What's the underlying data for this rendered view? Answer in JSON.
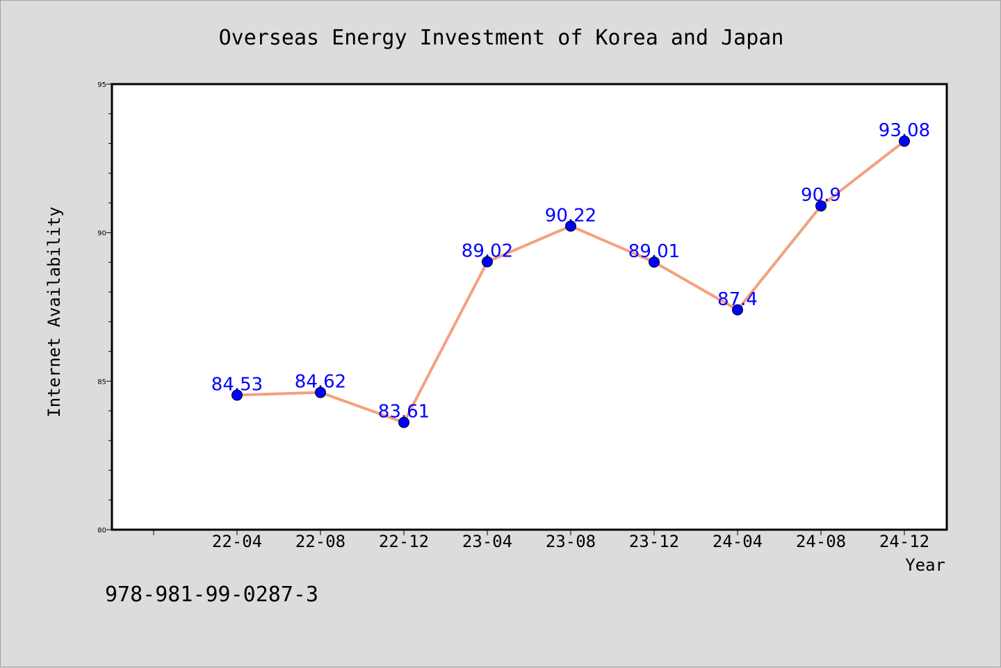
{
  "chart_data": {
    "type": "line",
    "title": "Overseas Energy Investment of Korea and Japan",
    "xlabel": "Year",
    "ylabel": "Internet Availability",
    "categories": [
      "22-04",
      "22-08",
      "22-12",
      "23-04",
      "23-08",
      "23-12",
      "24-04",
      "24-08",
      "24-12"
    ],
    "series": [
      {
        "values": [
          84.53,
          84.62,
          83.61,
          89.02,
          90.22,
          89.01,
          87.4,
          90.9,
          93.08
        ],
        "data_labels": [
          "84.53",
          "84.62",
          "83.61",
          "89.02",
          "90.22",
          "89.01",
          "87.4",
          "90.9",
          "93.08"
        ],
        "line_color": "#f4a07e",
        "marker_color": "#0000ff"
      }
    ],
    "ylim": [
      80,
      95
    ],
    "yticks": [
      "80",
      "85",
      "90",
      "95"
    ],
    "grid": false,
    "background": "#dcdcdc",
    "plot_background": "#ffffff"
  },
  "annotation": "978-981-99-0287-3"
}
